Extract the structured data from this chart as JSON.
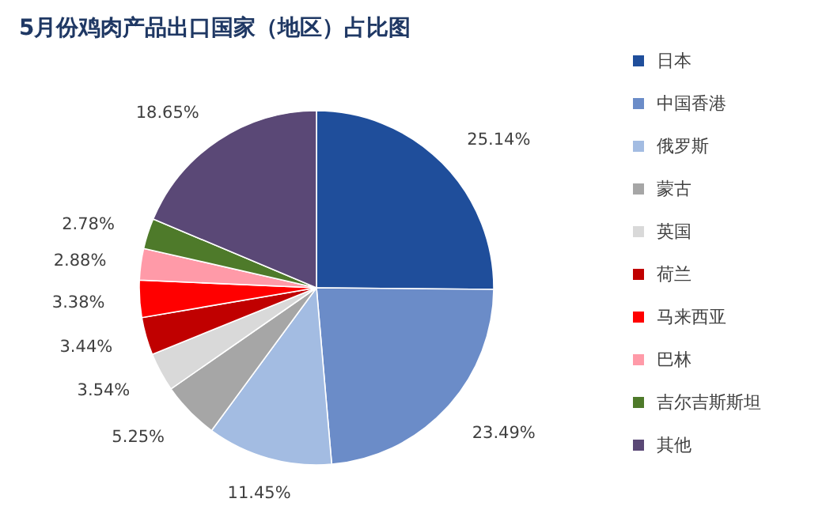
{
  "chart_data": {
    "type": "pie",
    "title": "5月份鸡肉产品出口国家（地区）占比图",
    "categories": [
      "日本",
      "中国香港",
      "俄罗斯",
      "蒙古",
      "英国",
      "荷兰",
      "马来西亚",
      "巴林",
      "吉尔吉斯斯坦",
      "其他"
    ],
    "values": [
      25.14,
      23.49,
      11.45,
      5.25,
      3.54,
      3.44,
      3.38,
      2.88,
      2.78,
      18.65
    ],
    "colors": [
      "#1f4e9b",
      "#6b8cc8",
      "#a3bce2",
      "#a6a6a6",
      "#d9d9d9",
      "#c00000",
      "#ff0000",
      "#ff9aa8",
      "#4e7a2a",
      "#5a4876"
    ],
    "value_labels": [
      "25.14%",
      "23.49%",
      "11.45%",
      "5.25%",
      "3.54%",
      "3.44%",
      "3.38%",
      "2.88%",
      "2.78%",
      "18.65%"
    ],
    "legend": "right"
  }
}
